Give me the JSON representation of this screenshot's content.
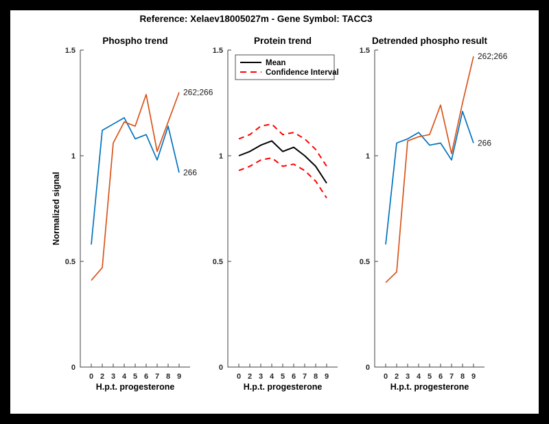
{
  "figure_title": "Reference:  Xelaev18005027m - Gene Symbol:  TACC3",
  "colors": {
    "blue": "#0072BD",
    "orange": "#D95319",
    "red": "#FF0000",
    "black": "#000000",
    "axis": "#3f3f3f"
  },
  "chart_data": [
    {
      "type": "line",
      "title": "Phospho trend",
      "xlabel": "H.p.t. progesterone",
      "ylabel": "Normalized signal",
      "x_tick_labels": [
        "0",
        "2",
        "3",
        "4",
        "5",
        "6",
        "7",
        "8",
        "9"
      ],
      "y_ticks": [
        0,
        0.5,
        1,
        1.5
      ],
      "y_tick_labels": [
        "0",
        "0.5",
        "1",
        "1.5"
      ],
      "ylim": [
        0,
        1.5
      ],
      "grid": false,
      "series": [
        {
          "name": "266",
          "color": "#0072BD",
          "dash": "solid",
          "width": 1.7,
          "end_label": "266",
          "values": [
            0.58,
            1.12,
            1.15,
            1.18,
            1.08,
            1.1,
            0.98,
            1.14,
            0.92
          ]
        },
        {
          "name": "262;266",
          "color": "#D95319",
          "dash": "solid",
          "width": 1.7,
          "end_label": "262;266",
          "values": [
            0.41,
            0.47,
            1.06,
            1.16,
            1.14,
            1.29,
            1.02,
            1.16,
            1.3
          ]
        }
      ]
    },
    {
      "type": "line",
      "title": "Protein trend",
      "xlabel": "H.p.t. progesterone",
      "ylabel": "",
      "x_tick_labels": [
        "0",
        "2",
        "3",
        "4",
        "5",
        "6",
        "7",
        "8",
        "9"
      ],
      "y_ticks": [
        0,
        0.5,
        1,
        1.5
      ],
      "y_tick_labels": [
        "0",
        "0.5",
        "1",
        "1.5"
      ],
      "ylim": [
        0,
        1.5
      ],
      "grid": false,
      "legend": {
        "position": "top-left",
        "entries": [
          {
            "label": "Mean",
            "color": "#000000",
            "dash": "solid"
          },
          {
            "label": "Confidence Interval",
            "color": "#FF0000",
            "dash": "dashed"
          }
        ]
      },
      "series": [
        {
          "name": "Mean",
          "color": "#000000",
          "dash": "solid",
          "width": 2,
          "end_label": "",
          "values": [
            1.0,
            1.02,
            1.05,
            1.07,
            1.02,
            1.04,
            1.0,
            0.95,
            0.87
          ]
        },
        {
          "name": "Confidence Interval upper",
          "color": "#FF0000",
          "dash": "dashed",
          "width": 2,
          "end_label": "",
          "values": [
            1.08,
            1.1,
            1.14,
            1.15,
            1.1,
            1.11,
            1.08,
            1.03,
            0.95
          ]
        },
        {
          "name": "Confidence Interval lower",
          "color": "#FF0000",
          "dash": "dashed",
          "width": 2,
          "end_label": "",
          "values": [
            0.93,
            0.95,
            0.98,
            0.99,
            0.95,
            0.96,
            0.93,
            0.88,
            0.8
          ]
        }
      ]
    },
    {
      "type": "line",
      "title": "Detrended phospho result",
      "xlabel": "H.p.t. progesterone",
      "ylabel": "",
      "x_tick_labels": [
        "0",
        "2",
        "3",
        "4",
        "5",
        "6",
        "7",
        "8",
        "9"
      ],
      "y_ticks": [
        0,
        0.5,
        1,
        1.5
      ],
      "y_tick_labels": [
        "0",
        "0.5",
        "1",
        "1.5"
      ],
      "ylim": [
        0,
        1.5
      ],
      "grid": false,
      "series": [
        {
          "name": "266",
          "color": "#0072BD",
          "dash": "solid",
          "width": 1.7,
          "end_label": "266",
          "values": [
            0.58,
            1.06,
            1.08,
            1.11,
            1.05,
            1.06,
            0.98,
            1.21,
            1.06
          ]
        },
        {
          "name": "262;266",
          "color": "#D95319",
          "dash": "solid",
          "width": 1.7,
          "end_label": "262;266",
          "values": [
            0.4,
            0.45,
            1.07,
            1.09,
            1.1,
            1.24,
            1.01,
            1.25,
            1.47
          ]
        }
      ]
    }
  ]
}
